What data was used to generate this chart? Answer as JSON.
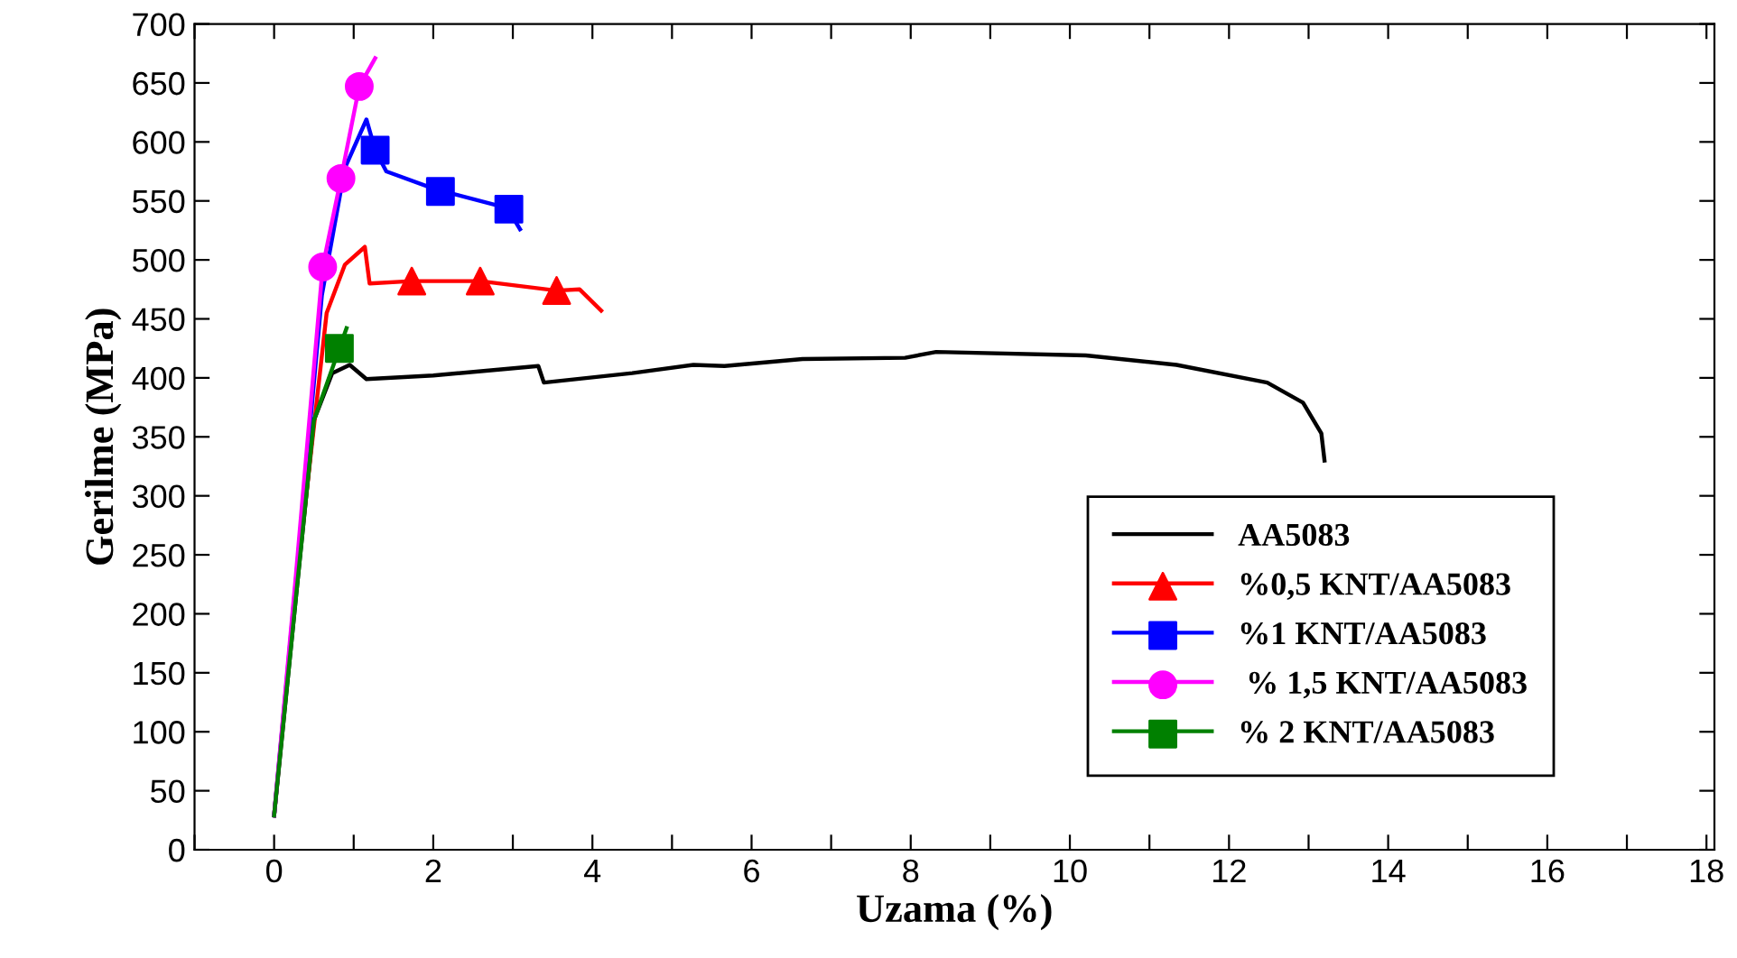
{
  "chart_data": {
    "type": "line",
    "xlabel": "Uzama (%)",
    "ylabel": "Gerilme (MPa)",
    "xlim": [
      -1,
      18.1
    ],
    "ylim": [
      0,
      700
    ],
    "xticks": [
      {
        "value": -1,
        "label": null
      },
      0,
      {
        "value": 1,
        "label": null
      },
      2,
      {
        "value": 3,
        "label": null
      },
      4,
      {
        "value": 5,
        "label": null
      },
      6,
      {
        "value": 7,
        "label": null
      },
      8,
      {
        "value": 9,
        "label": null
      },
      10,
      {
        "value": 11,
        "label": null
      },
      12,
      {
        "value": 13,
        "label": null
      },
      14,
      {
        "value": 15,
        "label": null
      },
      16,
      {
        "value": 17,
        "label": null
      },
      18
    ],
    "yticks": [
      0,
      50,
      100,
      150,
      200,
      250,
      300,
      350,
      400,
      450,
      500,
      550,
      600,
      650,
      700
    ],
    "grid": false,
    "legend": "bottom right",
    "series": [
      {
        "name": "AA5083",
        "color": "#000000",
        "marker": "none",
        "x": [
          0,
          0.27,
          0.5,
          0.73,
          0.95,
          1.16,
          2.0,
          3.32,
          3.39,
          4.5,
          5.27,
          5.66,
          6.64,
          7.93,
          8.32,
          10.2,
          11.34,
          12.48,
          12.93,
          13.16,
          13.2
        ],
        "values": [
          29,
          211,
          364,
          404,
          411,
          399,
          402,
          410,
          396,
          404,
          411,
          410,
          416,
          417,
          422,
          419,
          411,
          396,
          379,
          353,
          330
        ]
      },
      {
        "color": "#ff0000",
        "x": [
          0,
          0.27,
          0.66,
          0.89,
          1.14,
          1.2,
          1.73,
          2.59,
          3.55,
          3.84,
          4.11
        ],
        "values": [
          29,
          220,
          455,
          496,
          511,
          480,
          482,
          482,
          474,
          475,
          457
        ]
      },
      {
        "type": "scatter",
        "name": "%0,5 KNT/AA5083",
        "color": "#ff0000",
        "marker": "triangle",
        "x": [
          1.73,
          2.59,
          3.55
        ],
        "values": [
          482,
          482,
          474
        ]
      },
      {
        "color": "#0000ff",
        "x": [
          0,
          0.27,
          0.6,
          0.89,
          1.16,
          1.27,
          1.41,
          2.02,
          2.93,
          3.09
        ],
        "values": [
          29,
          225,
          470,
          578,
          619,
          593,
          575,
          560,
          544,
          526
        ]
      },
      {
        "type": "scatter",
        "name": "%1 KNT/AA5083",
        "color": "#0000ff",
        "marker": "square",
        "x": [
          1.27,
          2.09,
          2.95
        ],
        "values": [
          593,
          558,
          543
        ]
      },
      {
        "color": "#ff00ff",
        "x": [
          0,
          0.27,
          0.61,
          0.84,
          1.07,
          1.27
        ],
        "values": [
          29,
          230,
          494,
          569,
          647,
          671
        ]
      },
      {
        "type": "scatter",
        "name": " % 1,5 KNT/AA5083",
        "color": "#ff00ff",
        "marker": "circle",
        "x": [
          0.61,
          0.84,
          1.07
        ],
        "values": [
          494,
          569,
          647
        ]
      },
      {
        "color": "#008000",
        "x": [
          0,
          0.27,
          0.5,
          0.82,
          0.91
        ],
        "values": [
          29,
          211,
          364,
          425,
          442
        ]
      },
      {
        "type": "scatter",
        "name": "% 2 KNT/AA5083",
        "color": "#008000",
        "marker": "square",
        "x": [
          0.82
        ],
        "values": [
          425
        ]
      }
    ]
  }
}
